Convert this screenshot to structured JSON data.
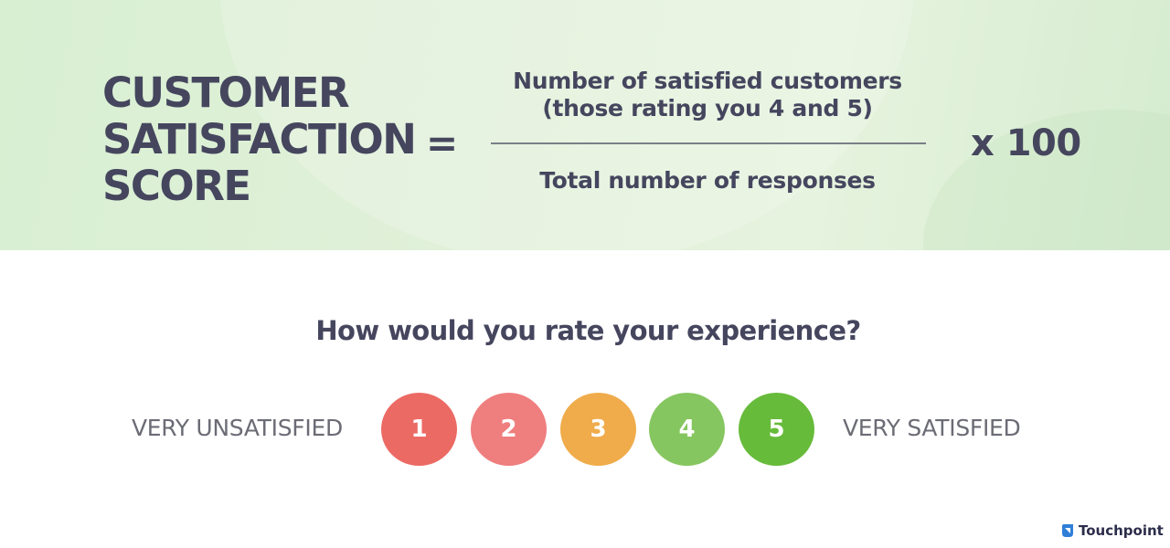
{
  "formula": {
    "lhs_lines": [
      "CUSTOMER",
      "SATISFACTION",
      "SCORE"
    ],
    "equals": "=",
    "numerator_lines": [
      "Number of satisfied customers",
      "(those rating you 4 and 5)"
    ],
    "denominator": "Total number of responses",
    "multiplier": "x 100"
  },
  "survey": {
    "question": "How would you rate your experience?",
    "low_label": "VERY UNSATISFIED",
    "high_label": "VERY SATISFIED",
    "ratings": [
      {
        "label": "1",
        "color": "#ec6a64"
      },
      {
        "label": "2",
        "color": "#ef7e7e"
      },
      {
        "label": "3",
        "color": "#f0ac4b"
      },
      {
        "label": "4",
        "color": "#86c660"
      },
      {
        "label": "5",
        "color": "#67bb3a"
      }
    ]
  },
  "brand": {
    "name": "Touchpoint",
    "icon": "touchpoint-logo-icon",
    "color": "#2f7fd8"
  }
}
